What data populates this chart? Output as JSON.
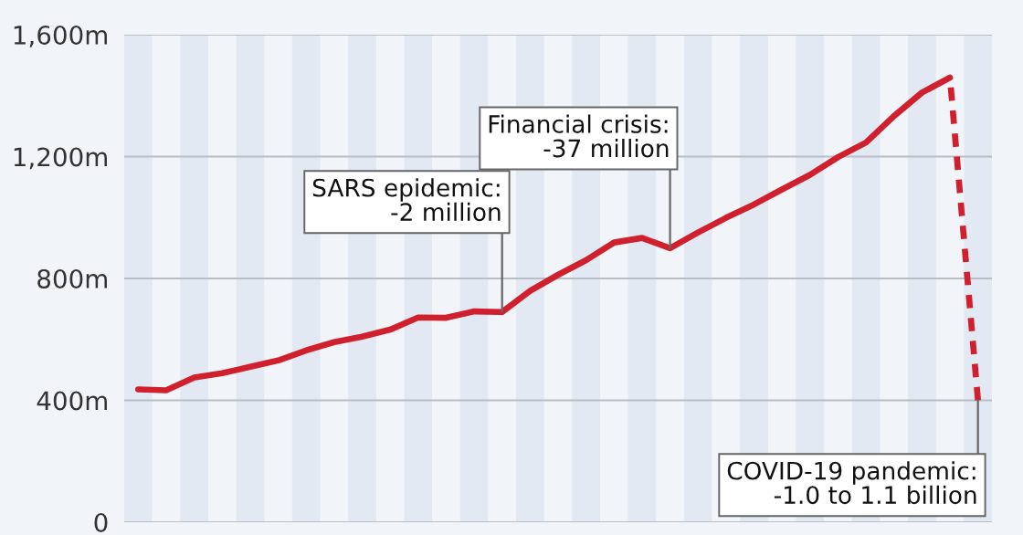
{
  "chart_data": {
    "type": "line",
    "categories": [
      null,
      null,
      null,
      null,
      null,
      null,
      null,
      null,
      null,
      null,
      null,
      null,
      null,
      null,
      null,
      null,
      null,
      null,
      null,
      null,
      null,
      null,
      null,
      null,
      null,
      null,
      null,
      null,
      null,
      null,
      null
    ],
    "series": [
      {
        "color": "#d0202e",
        "line_style": "solid",
        "values": [
          436,
          433,
          475,
          489,
          510,
          531,
          564,
          591,
          609,
          632,
          672,
          671,
          692,
          690,
          759,
          812,
          860,
          918,
          933,
          899,
          951,
          999,
          1043,
          1092,
          1140,
          1198,
          1246,
          1333,
          1410,
          1459,
          null
        ]
      },
      {
        "color": "#d0202e",
        "line_style": "dashed",
        "values": [
          null,
          null,
          null,
          null,
          null,
          null,
          null,
          null,
          null,
          null,
          null,
          null,
          null,
          null,
          null,
          null,
          null,
          null,
          null,
          null,
          null,
          null,
          null,
          null,
          null,
          null,
          null,
          null,
          null,
          1459,
          400
        ]
      }
    ],
    "ylim": [
      0,
      1600
    ],
    "yticks": [
      0,
      {
        "value": 400,
        "label": "400m"
      },
      {
        "value": 800,
        "label": "800m"
      },
      {
        "value": 1200,
        "label": "1,200m"
      },
      {
        "value": 1600,
        "label": "1,600m"
      }
    ],
    "grid": "y",
    "tick_labels": "y",
    "marker": "none",
    "annotations": [
      "SARS epidemic:\n-2 million",
      "Financial crisis:\n-37 million",
      "COVID-19 pandemic:\n-1.0 to 1.1 billion"
    ]
  }
}
